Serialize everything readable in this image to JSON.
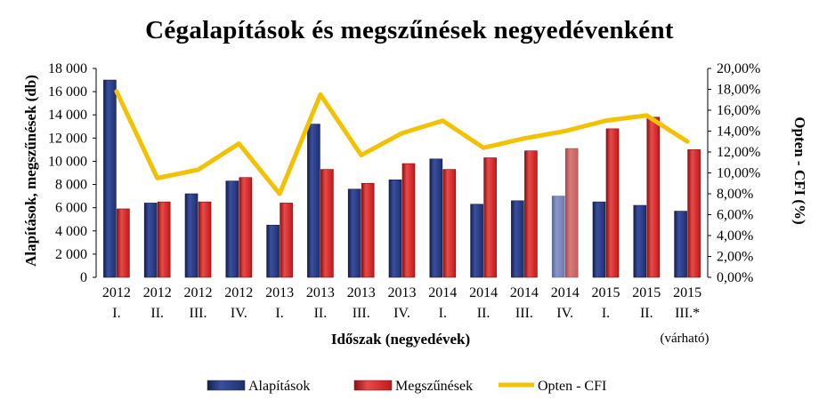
{
  "chart_data": {
    "type": "bar",
    "title": "Cégalapítások és megszűnések negyedévenként",
    "xlabel": "Időszak (negyedévek)",
    "ylabel": "Alapítások, megszűnések (db)",
    "y2label": "Opten - CFI (%)",
    "ylim": [
      0,
      18000
    ],
    "y2lim": [
      0,
      20
    ],
    "yticks": [
      "0",
      "2 000",
      "4 000",
      "6 000",
      "8 000",
      "10 000",
      "12 000",
      "14 000",
      "16 000",
      "18 000"
    ],
    "y2ticks": [
      "0,00%",
      "2,00%",
      "4,00%",
      "6,00%",
      "8,00%",
      "10,00%",
      "12,00%",
      "14,00%",
      "16,00%",
      "18,00%",
      "20,00%"
    ],
    "categories": [
      [
        "2012",
        "I."
      ],
      [
        "2012",
        "II."
      ],
      [
        "2012",
        "III."
      ],
      [
        "2012",
        "IV."
      ],
      [
        "2013",
        "I."
      ],
      [
        "2013",
        "II."
      ],
      [
        "2013",
        "III."
      ],
      [
        "2013",
        "IV."
      ],
      [
        "2014",
        "I."
      ],
      [
        "2014",
        "II."
      ],
      [
        "2014",
        "III."
      ],
      [
        "2014",
        "IV."
      ],
      [
        "2015",
        "I."
      ],
      [
        "2015",
        "II."
      ],
      [
        "2015",
        "III.*"
      ]
    ],
    "category_note": "(várható)",
    "series": [
      {
        "name": "Alapítások",
        "kind": "bar",
        "color": "#1f2f6e",
        "values": [
          17000,
          6400,
          7200,
          8300,
          4500,
          13200,
          7600,
          8400,
          10200,
          6300,
          6600,
          7000,
          6500,
          6200,
          5700
        ]
      },
      {
        "name": "Megszűnések",
        "kind": "bar",
        "color": "#cc1f1f",
        "values": [
          5900,
          6500,
          6500,
          8600,
          6400,
          9300,
          8100,
          9800,
          9300,
          10300,
          10900,
          11100,
          12800,
          13800,
          11000
        ]
      },
      {
        "name": "Opten - CFI",
        "kind": "line",
        "axis": "right",
        "color": "#f2c100",
        "values": [
          17.8,
          9.5,
          10.3,
          12.8,
          8.0,
          17.5,
          11.7,
          13.8,
          15.0,
          12.4,
          13.3,
          14.0,
          15.0,
          15.5,
          13.0
        ]
      }
    ],
    "faded_category_index": 11,
    "grid": false,
    "legend_position": "bottom"
  }
}
